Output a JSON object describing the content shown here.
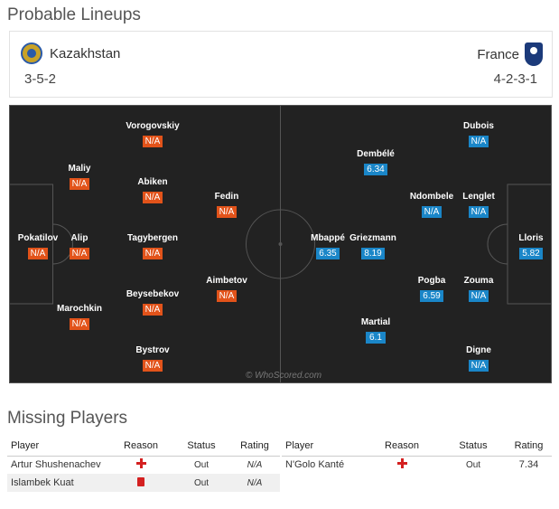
{
  "lineups": {
    "title": "Probable Lineups",
    "home": {
      "name": "Kazakhstan",
      "formation": "3-5-2",
      "crest": "kazakhstan-crest"
    },
    "away": {
      "name": "France",
      "formation": "4-2-3-1",
      "crest": "france-crest"
    },
    "watermark": "© WhoScored.com",
    "home_players": [
      {
        "name": "Pokatilov",
        "rating": "N/A"
      },
      {
        "name": "Maliy",
        "rating": "N/A"
      },
      {
        "name": "Alip",
        "rating": "N/A"
      },
      {
        "name": "Marochkin",
        "rating": "N/A"
      },
      {
        "name": "Vorogovskiy",
        "rating": "N/A"
      },
      {
        "name": "Abiken",
        "rating": "N/A"
      },
      {
        "name": "Tagybergen",
        "rating": "N/A"
      },
      {
        "name": "Beysebekov",
        "rating": "N/A"
      },
      {
        "name": "Bystrov",
        "rating": "N/A"
      },
      {
        "name": "Fedin",
        "rating": "N/A"
      },
      {
        "name": "Aimbetov",
        "rating": "N/A"
      }
    ],
    "away_players": [
      {
        "name": "Lloris",
        "rating": "5.82"
      },
      {
        "name": "Dubois",
        "rating": "N/A"
      },
      {
        "name": "Lenglet",
        "rating": "N/A"
      },
      {
        "name": "Zouma",
        "rating": "N/A"
      },
      {
        "name": "Digne",
        "rating": "N/A"
      },
      {
        "name": "Ndombele",
        "rating": "N/A"
      },
      {
        "name": "Pogba",
        "rating": "6.59"
      },
      {
        "name": "Dembélé",
        "rating": "6.34"
      },
      {
        "name": "Griezmann",
        "rating": "8.19"
      },
      {
        "name": "Martial",
        "rating": "6.1"
      },
      {
        "name": "Mbappé",
        "rating": "6.35"
      }
    ]
  },
  "missing": {
    "title": "Missing Players",
    "headers": {
      "player": "Player",
      "reason": "Reason",
      "status": "Status",
      "rating": "Rating"
    },
    "home": [
      {
        "player": "Artur Shushenachev",
        "reason": "injury-icon",
        "status": "Out",
        "rating": "N/A"
      },
      {
        "player": "Islambek Kuat",
        "reason": "red-card-icon",
        "status": "Out",
        "rating": "N/A"
      }
    ],
    "away": [
      {
        "player": "N'Golo Kanté",
        "reason": "injury-icon",
        "status": "Out",
        "rating": "7.34"
      }
    ]
  },
  "colors": {
    "home_rating": "#e2531a",
    "away_rating": "#1a86c8",
    "pitch": "#222222",
    "injury": "#d42020"
  }
}
